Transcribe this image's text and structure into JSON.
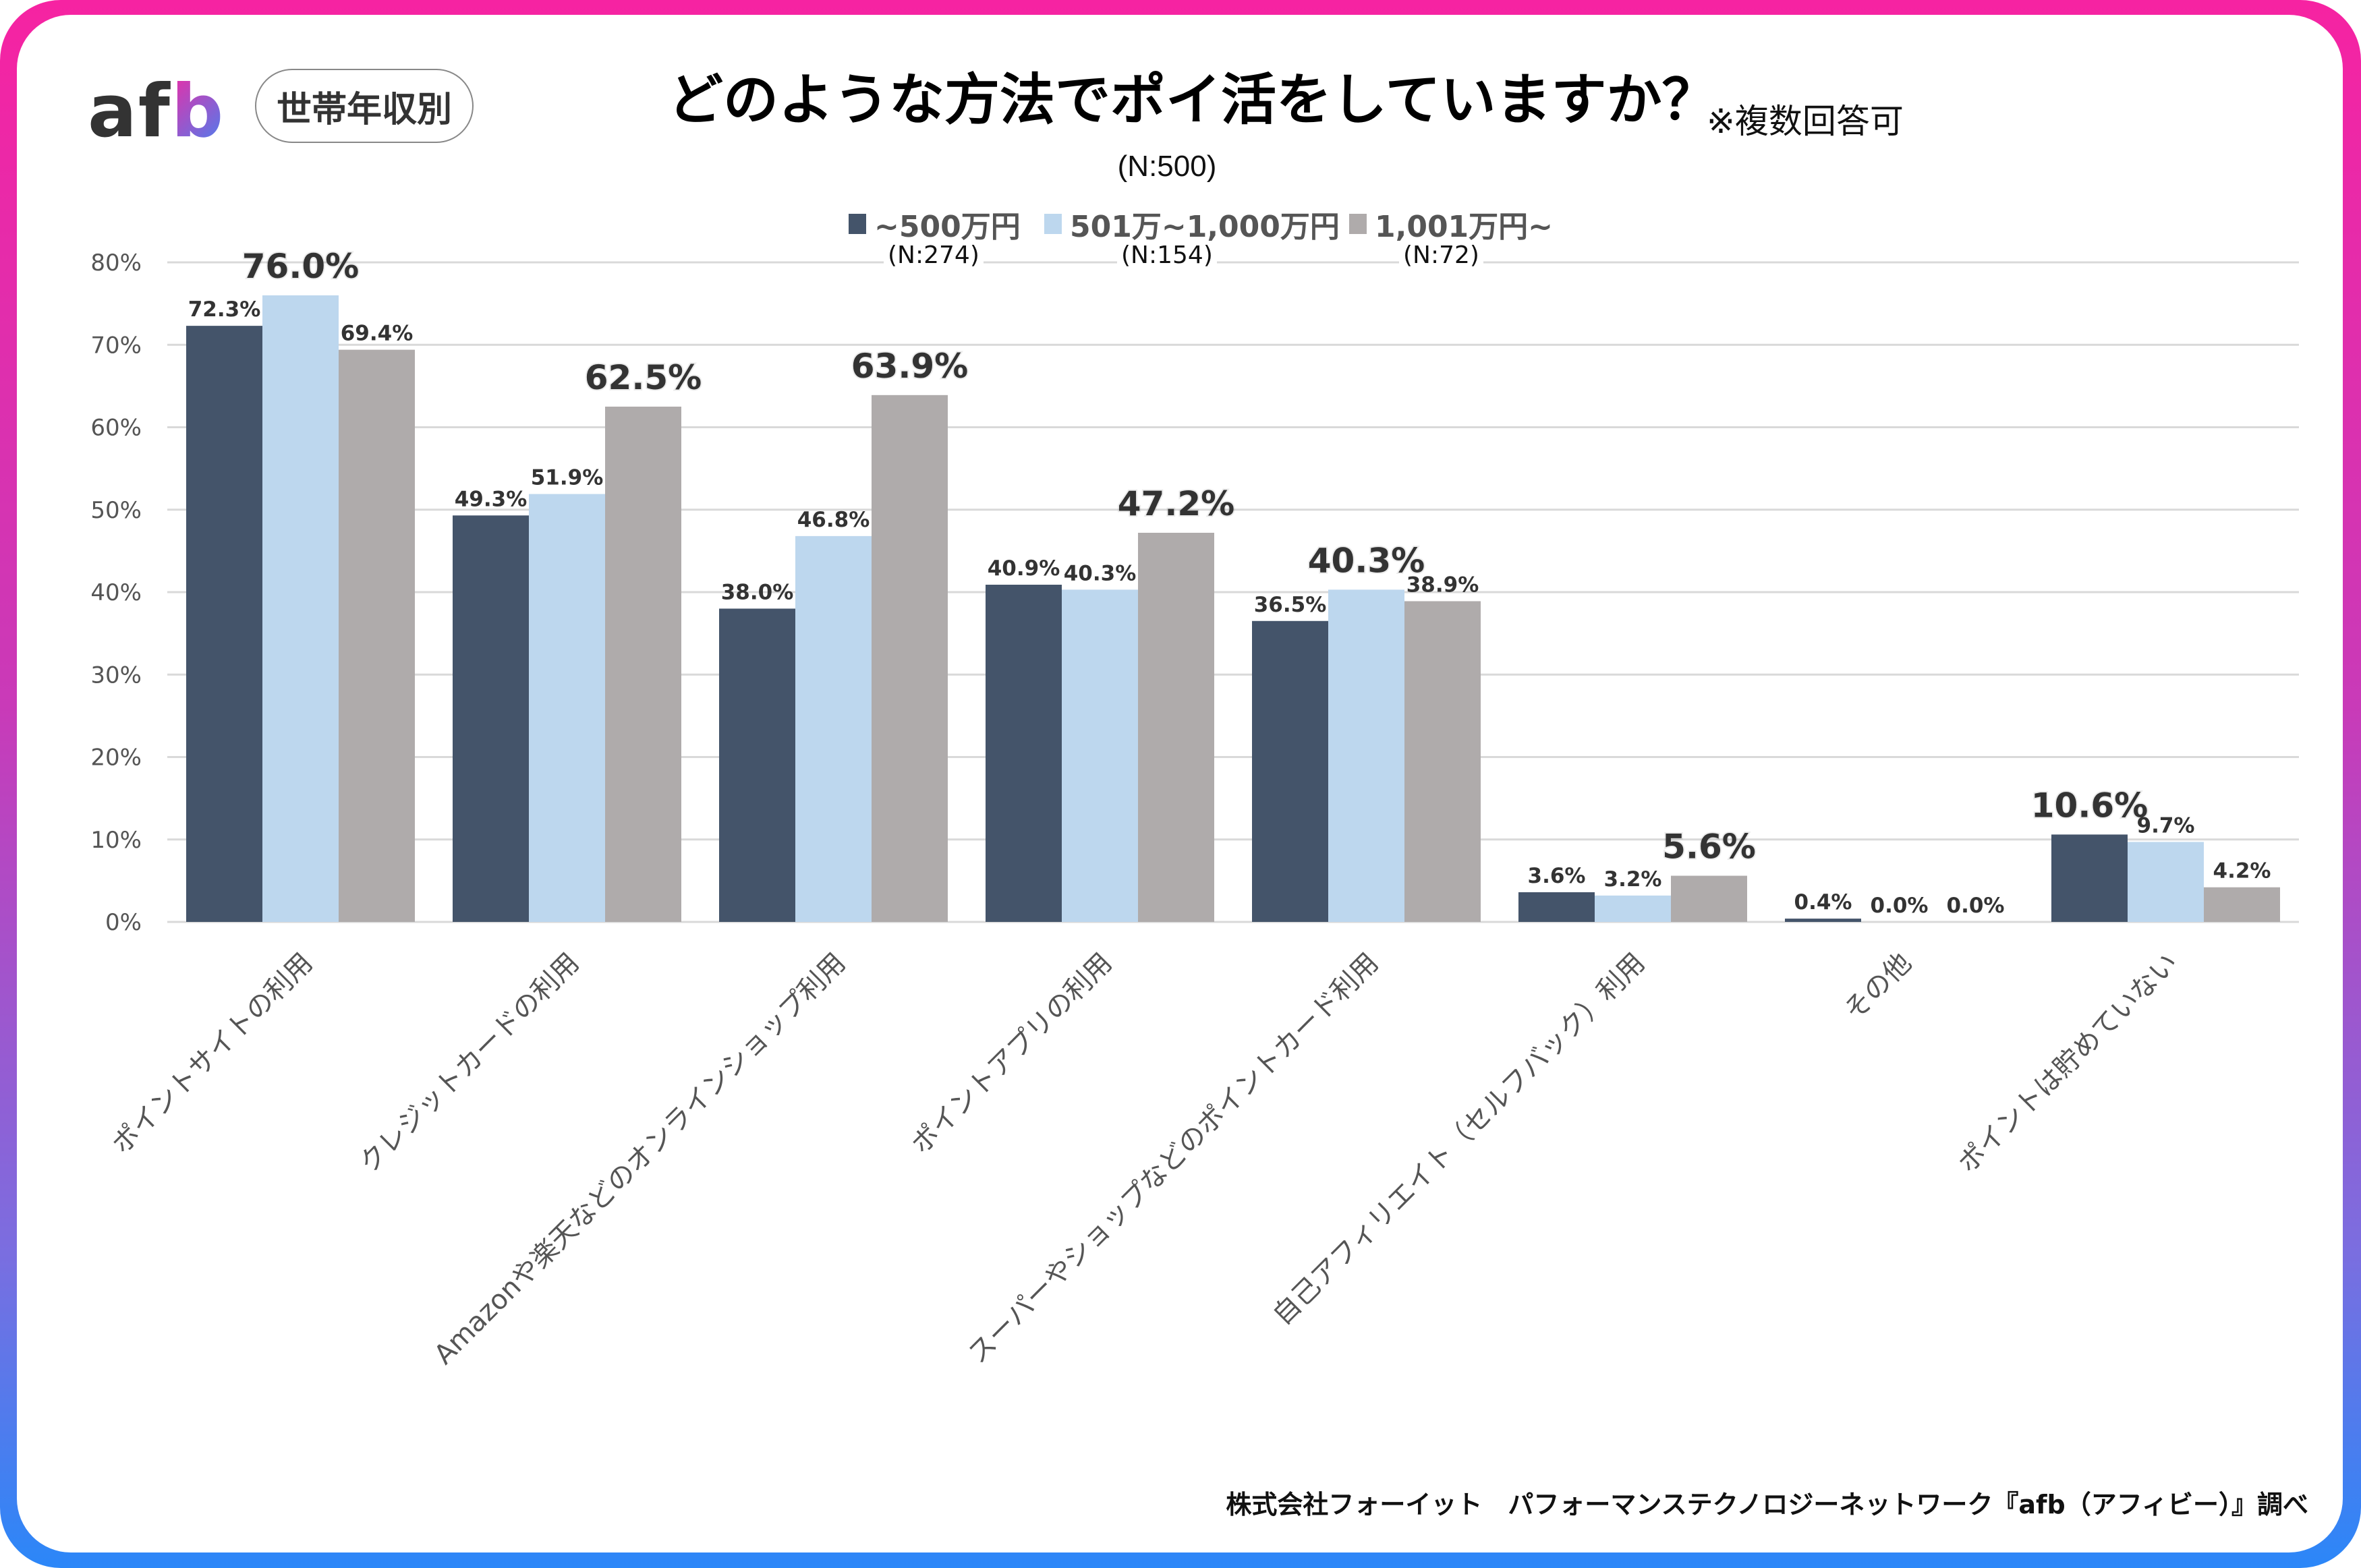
{
  "header": {
    "logo_text_a": "af",
    "logo_text_b": "b",
    "segment_pill": "世帯年収別",
    "title": "どのような方法でポイ活をしていますか？",
    "title_note": "※複数回答可",
    "sample_size": "(N:500)"
  },
  "colors": {
    "series_1": "#44546a",
    "series_2": "#bdd7ee",
    "series_3": "#afabab",
    "highlight_series_2": "#5b9bd5",
    "highlight_series_3": "#767171",
    "highlight_series_1": "#44546a",
    "frame_top": "#f623a2",
    "frame_bottom": "#2b87f8"
  },
  "chart_data": {
    "type": "bar",
    "title": "どのような方法でポイ活をしていますか？",
    "xlabel": "",
    "ylabel": "",
    "ylim": [
      0,
      80
    ],
    "yticks": [
      "0%",
      "10%",
      "20%",
      "30%",
      "40%",
      "50%",
      "60%",
      "70%",
      "80%"
    ],
    "grid": true,
    "legend_position": "top-center",
    "categories": [
      "ポイントサイトの利用",
      "クレジットカードの利用",
      "Amazonや楽天などのオンラインショップ利用",
      "ポイントアプリの利用",
      "スーパーやショップなどのポイントカード利用",
      "自己アフィリエイト（セルフバック）利用",
      "その他",
      "ポイントは貯めていない"
    ],
    "series": [
      {
        "name": "~500万円",
        "n_label": "(N:274)",
        "values": [
          72.3,
          49.3,
          38.0,
          40.9,
          36.5,
          3.6,
          0.4,
          10.6
        ]
      },
      {
        "name": "501万~1,000万円",
        "n_label": "(N:154)",
        "values": [
          76.0,
          51.9,
          46.8,
          40.3,
          40.3,
          3.2,
          0.0,
          9.7
        ]
      },
      {
        "name": "1,001万円~",
        "n_label": "(N:72)",
        "values": [
          69.4,
          62.5,
          63.9,
          47.2,
          38.9,
          5.6,
          0.0,
          4.2
        ]
      }
    ],
    "highlighted_max": [
      {
        "category_index": 0,
        "series_index": 1
      },
      {
        "category_index": 1,
        "series_index": 2
      },
      {
        "category_index": 2,
        "series_index": 2
      },
      {
        "category_index": 3,
        "series_index": 2
      },
      {
        "category_index": 4,
        "series_index": 1
      },
      {
        "category_index": 5,
        "series_index": 2
      },
      {
        "category_index": 7,
        "series_index": 0
      }
    ]
  },
  "footer": {
    "credit": "株式会社フォーイット　パフォーマンステクノロジーネットワーク『afb（アフィビー）』調べ"
  }
}
